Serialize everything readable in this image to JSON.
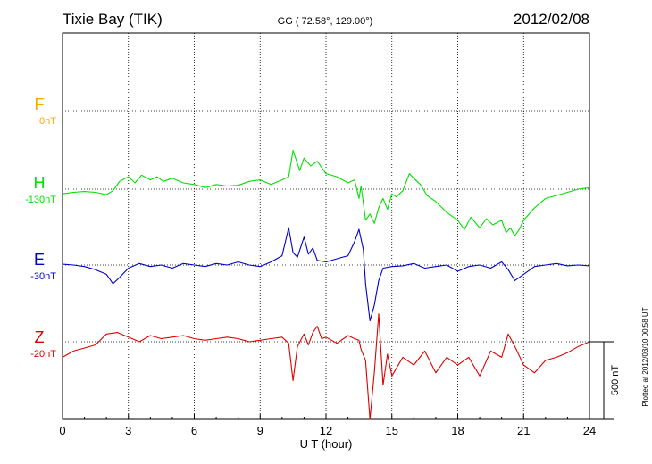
{
  "header": {
    "station": "Tixie Bay (TIK)",
    "coords": "GG ( 72.58°, 129.00°)",
    "date": "2012/02/08"
  },
  "footer": {
    "xlabel": "U T (hour)",
    "plotted": "Plotted at 2012/03/10 00:58 UT",
    "scale_label": "500 nT"
  },
  "chart_data": {
    "type": "line",
    "title": "Tixie Bay (TIK)",
    "subtitle": "GG ( 72.58°, 129.00°)",
    "xlabel": "U T (hour)",
    "ylabel": "",
    "xlim": [
      0,
      24
    ],
    "xticks": [
      "0",
      "3",
      "6",
      "9",
      "12",
      "15",
      "18",
      "21",
      "24"
    ],
    "grid": true,
    "scale_bar_nT": 500,
    "colors": {
      "F": "#ffa500",
      "H": "#00e000",
      "E": "#0000cc",
      "Z": "#dd0000"
    },
    "series": [
      {
        "name": "F",
        "baseline_label": "0nT",
        "color": "#ffa500",
        "x": [],
        "values": []
      },
      {
        "name": "H",
        "baseline_label": "-130nT",
        "color": "#00e000",
        "x": [
          0,
          0.5,
          1,
          1.5,
          2,
          2.3,
          2.6,
          3,
          3.3,
          3.6,
          4,
          4.3,
          4.6,
          5,
          5.5,
          6,
          6.5,
          7,
          7.5,
          8,
          8.5,
          9,
          9.5,
          10,
          10.3,
          10.5,
          10.8,
          11,
          11.3,
          11.6,
          12,
          12.5,
          13,
          13.3,
          13.5,
          13.6,
          13.8,
          14,
          14.2,
          14.4,
          14.6,
          14.8,
          15,
          15.2,
          15.5,
          15.8,
          16,
          16.3,
          16.6,
          17,
          17.5,
          18,
          18.3,
          18.6,
          19,
          19.3,
          19.6,
          20,
          20.2,
          20.4,
          20.6,
          20.8,
          21,
          21.5,
          22,
          22.5,
          23,
          23.5,
          24
        ],
        "values": [
          -30,
          -20,
          -15,
          -20,
          -35,
          -10,
          50,
          80,
          40,
          90,
          60,
          80,
          50,
          70,
          40,
          30,
          10,
          30,
          20,
          25,
          50,
          60,
          30,
          60,
          80,
          250,
          120,
          200,
          150,
          180,
          100,
          80,
          40,
          60,
          -60,
          20,
          -200,
          -160,
          -220,
          -120,
          -60,
          -130,
          -30,
          -50,
          -10,
          100,
          70,
          30,
          -40,
          -80,
          -150,
          -200,
          -260,
          -180,
          -250,
          -190,
          -230,
          -200,
          -280,
          -250,
          -300,
          -260,
          -200,
          -120,
          -60,
          -40,
          -20,
          0,
          10
        ]
      },
      {
        "name": "E",
        "baseline_label": "-30nT",
        "color": "#0000cc",
        "x": [
          0,
          0.5,
          1,
          1.5,
          2,
          2.3,
          2.6,
          3,
          3.5,
          4,
          4.5,
          5,
          5.5,
          6,
          6.5,
          7,
          7.5,
          8,
          8.5,
          9,
          9.5,
          10,
          10.3,
          10.5,
          10.7,
          11,
          11.2,
          11.4,
          11.6,
          12,
          12.5,
          13,
          13.3,
          13.5,
          13.7,
          13.8,
          14,
          14.2,
          14.4,
          14.6,
          15,
          15.5,
          16,
          16.5,
          17,
          17.5,
          18,
          18.5,
          19,
          19.5,
          20,
          20.3,
          20.6,
          21,
          21.5,
          22,
          22.5,
          23,
          23.5,
          24
        ],
        "values": [
          5,
          0,
          -10,
          -30,
          -60,
          -120,
          -80,
          -20,
          10,
          -10,
          0,
          -20,
          10,
          0,
          -10,
          10,
          0,
          20,
          0,
          -10,
          20,
          60,
          240,
          80,
          50,
          180,
          70,
          110,
          30,
          20,
          40,
          60,
          150,
          230,
          100,
          -120,
          -360,
          -260,
          -100,
          -20,
          -10,
          -5,
          10,
          -20,
          -10,
          0,
          -40,
          -10,
          0,
          -20,
          20,
          -30,
          -100,
          -60,
          -10,
          0,
          10,
          -5,
          0,
          -5
        ]
      },
      {
        "name": "Z",
        "baseline_label": "-20nT",
        "color": "#dd0000",
        "x": [
          0,
          0.5,
          1,
          1.5,
          2,
          2.5,
          3,
          3.5,
          4,
          4.5,
          5,
          5.5,
          6,
          6.5,
          7,
          7.5,
          8,
          8.5,
          9,
          9.5,
          10,
          10.3,
          10.5,
          10.7,
          11,
          11.2,
          11.4,
          11.6,
          11.8,
          12,
          12.5,
          13,
          13.3,
          13.5,
          13.6,
          13.8,
          14,
          14.2,
          14.4,
          14.6,
          14.8,
          15,
          15.5,
          16,
          16.5,
          17,
          17.5,
          18,
          18.5,
          19,
          19.5,
          20,
          20.3,
          20.6,
          21,
          21.5,
          22,
          22.5,
          23,
          23.5,
          24
        ],
        "values": [
          -100,
          -60,
          -40,
          -20,
          50,
          60,
          30,
          0,
          40,
          20,
          30,
          40,
          20,
          10,
          20,
          30,
          20,
          0,
          10,
          20,
          30,
          -10,
          -250,
          -30,
          50,
          -20,
          60,
          100,
          20,
          30,
          -10,
          40,
          20,
          10,
          -50,
          -120,
          -500,
          -200,
          180,
          -280,
          -80,
          -220,
          -100,
          -150,
          -60,
          -200,
          -100,
          -150,
          -100,
          -220,
          -60,
          -100,
          50,
          -30,
          -150,
          -200,
          -120,
          -100,
          -70,
          -30,
          0
        ]
      }
    ]
  }
}
